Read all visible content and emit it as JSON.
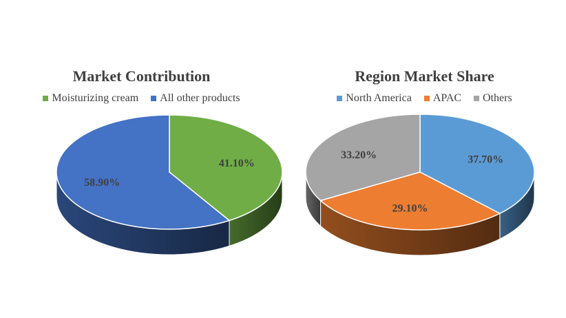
{
  "chart_data": [
    {
      "type": "pie",
      "title": "Market Contribution",
      "categories": [
        "Moisturizing cream",
        "All other products"
      ],
      "values": [
        41.1,
        58.9
      ],
      "labels": [
        "41.10%",
        "58.90%"
      ],
      "colors": [
        "#70ad47",
        "#4472c4"
      ],
      "legend_position": "top"
    },
    {
      "type": "pie",
      "title": "Region Market Share",
      "categories": [
        "North America",
        "APAC",
        "Others"
      ],
      "values": [
        37.7,
        29.1,
        33.2
      ],
      "labels": [
        "37.70%",
        "29.10%",
        "33.20%"
      ],
      "colors": [
        "#5b9bd5",
        "#ed7d31",
        "#a5a5a5"
      ],
      "legend_position": "top"
    }
  ]
}
